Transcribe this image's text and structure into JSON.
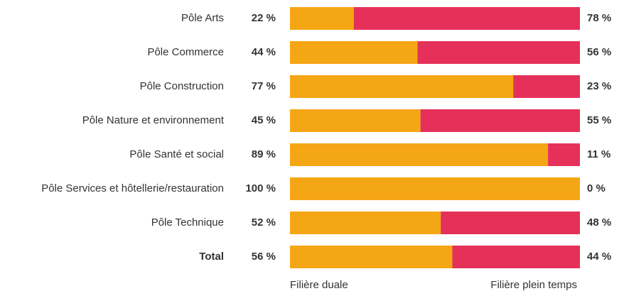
{
  "chart_data": {
    "type": "bar",
    "orientation": "horizontal",
    "stacked": true,
    "categories": [
      "Pôle Arts",
      "Pôle Commerce",
      "Pôle Construction",
      "Pôle Nature et environnement",
      "Pôle Santé et social",
      "Pôle Services et hôtellerie/restauration",
      "Pôle Technique",
      "Total"
    ],
    "series": [
      {
        "name": "Filière duale",
        "color": "#f5a614",
        "values": [
          22,
          44,
          77,
          45,
          89,
          100,
          52,
          56
        ],
        "value_labels": [
          "22 %",
          "44 %",
          "77 %",
          "45 %",
          "89 %",
          "100 %",
          "52 %",
          "56 %"
        ]
      },
      {
        "name": "Filière plein temps",
        "color": "#e5315a",
        "values": [
          78,
          56,
          23,
          55,
          11,
          0,
          48,
          44
        ],
        "value_labels": [
          "78 %",
          "56 %",
          "23 %",
          "55 %",
          "11 %",
          "0 %",
          "48 %",
          "44 %"
        ]
      }
    ],
    "xlim": [
      0,
      100
    ]
  }
}
